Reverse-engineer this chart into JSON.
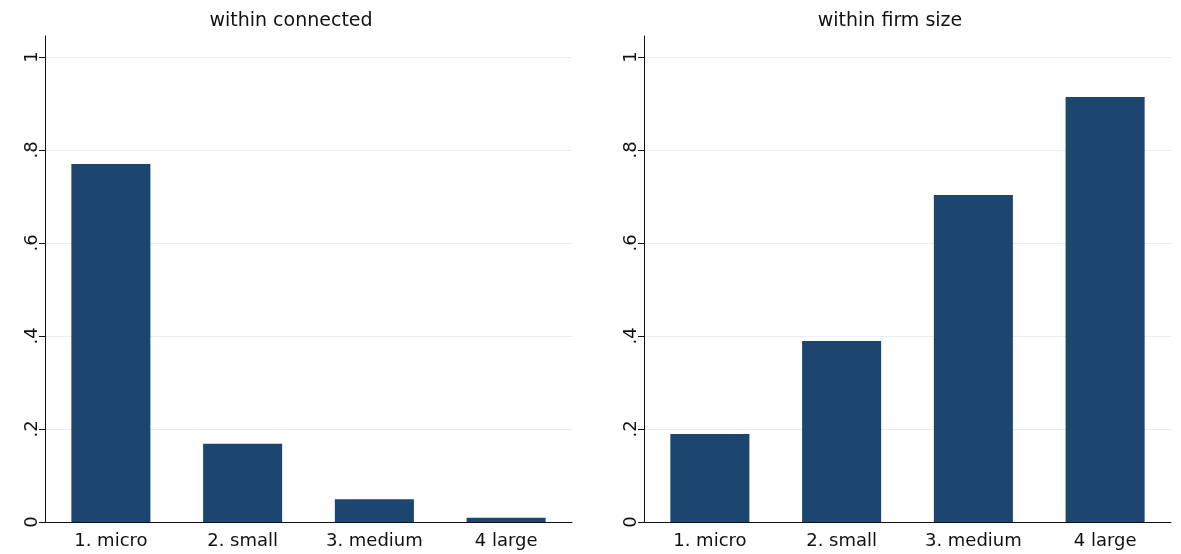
{
  "chart_data": [
    {
      "type": "bar",
      "title": "within connected",
      "categories": [
        "1. micro",
        "2. small",
        "3. medium",
        "4 large"
      ],
      "values": [
        0.77,
        0.168,
        0.049,
        0.009
      ],
      "color": "#1c466e",
      "ylim": [
        0,
        1.045
      ],
      "yticks": [
        {
          "value": 0,
          "label": "0"
        },
        {
          "value": 0.2,
          "label": ".2"
        },
        {
          "value": 0.4,
          "label": ".4"
        },
        {
          "value": 0.6,
          "label": ".6"
        },
        {
          "value": 0.8,
          "label": ".8"
        },
        {
          "value": 1,
          "label": "1"
        }
      ],
      "grid": "y"
    },
    {
      "type": "bar",
      "title": "within firm size",
      "categories": [
        "1. micro",
        "2. small",
        "3. medium",
        "4 large"
      ],
      "values": [
        0.189,
        0.389,
        0.703,
        0.914
      ],
      "color": "#1c466e",
      "ylim": [
        0,
        1.045
      ],
      "yticks": [
        {
          "value": 0,
          "label": "0"
        },
        {
          "value": 0.2,
          "label": ".2"
        },
        {
          "value": 0.4,
          "label": ".4"
        },
        {
          "value": 0.6,
          "label": ".6"
        },
        {
          "value": 0.8,
          "label": ".8"
        },
        {
          "value": 1,
          "label": "1"
        }
      ],
      "grid": "y"
    }
  ]
}
